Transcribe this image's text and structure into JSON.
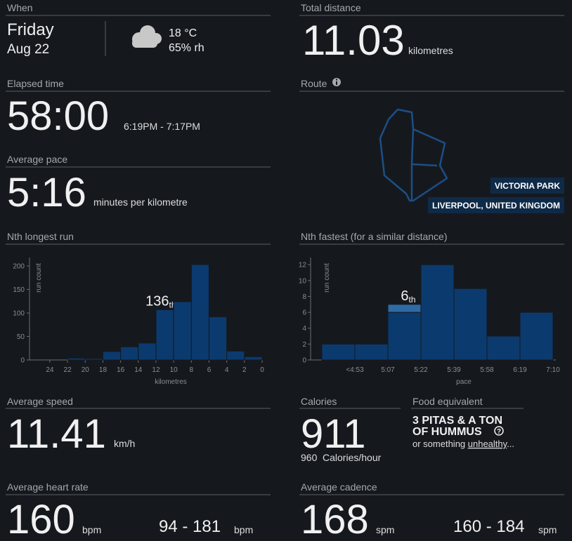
{
  "when": {
    "heading": "When",
    "day": "Friday",
    "date": "Aug 22",
    "temperature": "18 °C",
    "humidity": "65% rh"
  },
  "total_distance": {
    "heading": "Total distance",
    "value": "11.03",
    "unit": "kilometres"
  },
  "elapsed_time": {
    "heading": "Elapsed time",
    "value": "58:00",
    "range": "6:19PM - 7:17PM"
  },
  "route": {
    "heading": "Route",
    "labels": [
      "VICTORIA PARK",
      "LIVERPOOL, UNITED KINGDOM"
    ]
  },
  "average_pace": {
    "heading": "Average pace",
    "value": "5:16",
    "unit": "minutes per kilometre"
  },
  "chart_data": [
    {
      "type": "histogram",
      "title": "Nth longest run",
      "ylabel": "run count",
      "xlabel": "kilometres",
      "bins": [
        22,
        20,
        18,
        16,
        14,
        12,
        10,
        8,
        6,
        4,
        2,
        0
      ],
      "values": [
        4,
        3,
        18,
        28,
        36,
        107,
        124,
        203,
        92,
        19,
        7
      ],
      "color": "#0b3a6e",
      "xlim": [
        26.3,
        0
      ],
      "xticks": [
        24,
        22,
        20,
        18,
        16,
        14,
        12,
        10,
        8,
        6,
        4,
        2,
        0
      ],
      "ylim": [
        0,
        218
      ],
      "yticks": [
        0,
        50,
        100,
        150,
        200
      ],
      "annotation_x": 11.03,
      "annotation": "136",
      "annotation_suffix": "th"
    },
    {
      "type": "category_histogram",
      "title": "Nth fastest (for a similar distance)",
      "ylabel": "run count",
      "xlabel": "pace",
      "bins": [
        null,
        "<4:53",
        "5:07",
        "5:22",
        "5:39",
        "5:58",
        "6:19",
        "7:10"
      ],
      "values": [
        2,
        2,
        6,
        12,
        9,
        3,
        6
      ],
      "highlight_values": [
        0,
        0,
        1,
        0,
        0,
        0,
        0
      ],
      "color": "#0b3a6e",
      "highlight_color": "#2e6aa6",
      "ylim": [
        0,
        12.9
      ],
      "yticks": [
        0,
        2,
        4,
        6,
        8,
        10,
        12
      ],
      "annotation": "6",
      "annotation_suffix": "th"
    }
  ],
  "average_speed": {
    "heading": "Average speed",
    "value": "11.41",
    "unit": "km/h"
  },
  "calories": {
    "heading": "Calories",
    "value": "911",
    "rate_value": "960",
    "rate_unit": "Calories/hour"
  },
  "food": {
    "heading": "Food equivalent",
    "title_lines": [
      "3 PITAS & A TON",
      "OF HUMMUS"
    ],
    "note_prefix": "or something ",
    "note_link": "unhealthy",
    "note_suffix": "..."
  },
  "heart_rate": {
    "heading": "Average heart rate",
    "value": "160",
    "unit": "bpm",
    "range": "94 - 181",
    "range_unit": "bpm"
  },
  "cadence": {
    "heading": "Average cadence",
    "value": "168",
    "unit": "spm",
    "range": "160 - 184",
    "range_unit": "spm"
  }
}
